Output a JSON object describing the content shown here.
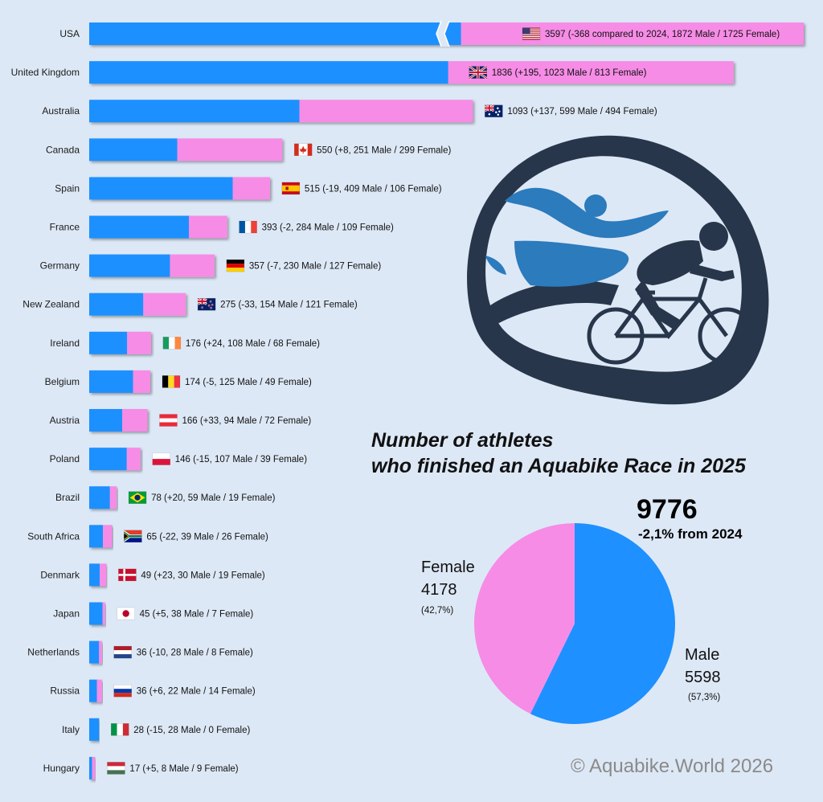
{
  "title_line1": "Number of athletes",
  "title_line2": "who finished an Aquabike Race in 2025",
  "copyright": "© Aquabike.World 2026",
  "colors": {
    "male": "#1e90ff",
    "female": "#f68ce6",
    "background": "#dde8f6",
    "logo_dark": "#27364a",
    "logo_blue": "#2b7bbd"
  },
  "logo": {
    "icon": "swim-bike-logo-icon"
  },
  "total": {
    "value": "9776",
    "change": "-2,1% from 2024"
  },
  "chart_data": [
    {
      "type": "bar",
      "orientation": "horizontal",
      "stacked": true,
      "series": [
        {
          "key": "male",
          "color": "#1e90ff"
        },
        {
          "key": "female",
          "color": "#f68ce6"
        }
      ],
      "broken_axis_category": "USA",
      "rows": [
        {
          "country": "USA",
          "flag": "us-flag-icon",
          "total": 3597,
          "male": 1872,
          "female": 1725,
          "label": "3597 (-368 compared to 2024, 1872 Male / 1725 Female)"
        },
        {
          "country": "United Kingdom",
          "flag": "uk-flag-icon",
          "total": 1836,
          "male": 1023,
          "female": 813,
          "label": "1836 (+195, 1023 Male / 813 Female)"
        },
        {
          "country": "Australia",
          "flag": "australia-flag-icon",
          "total": 1093,
          "male": 599,
          "female": 494,
          "label": "1093 (+137, 599 Male / 494 Female)"
        },
        {
          "country": "Canada",
          "flag": "canada-flag-icon",
          "total": 550,
          "male": 251,
          "female": 299,
          "label": "550 (+8, 251 Male / 299 Female)"
        },
        {
          "country": "Spain",
          "flag": "spain-flag-icon",
          "total": 515,
          "male": 409,
          "female": 106,
          "label": "515 (-19, 409 Male / 106 Female)"
        },
        {
          "country": "France",
          "flag": "france-flag-icon",
          "total": 393,
          "male": 284,
          "female": 109,
          "label": "393 (-2, 284 Male / 109 Female)"
        },
        {
          "country": "Germany",
          "flag": "germany-flag-icon",
          "total": 357,
          "male": 230,
          "female": 127,
          "label": "357 (-7, 230 Male / 127 Female)"
        },
        {
          "country": "New Zealand",
          "flag": "new-zealand-flag-icon",
          "total": 275,
          "male": 154,
          "female": 121,
          "label": "275 (-33, 154 Male / 121 Female)"
        },
        {
          "country": "Ireland",
          "flag": "ireland-flag-icon",
          "total": 176,
          "male": 108,
          "female": 68,
          "label": "176 (+24, 108 Male / 68 Female)"
        },
        {
          "country": "Belgium",
          "flag": "belgium-flag-icon",
          "total": 174,
          "male": 125,
          "female": 49,
          "label": "174 (-5, 125 Male / 49 Female)"
        },
        {
          "country": "Austria",
          "flag": "austria-flag-icon",
          "total": 166,
          "male": 94,
          "female": 72,
          "label": "166 (+33, 94 Male / 72 Female)"
        },
        {
          "country": "Poland",
          "flag": "poland-flag-icon",
          "total": 146,
          "male": 107,
          "female": 39,
          "label": "146 (-15, 107 Male / 39 Female)"
        },
        {
          "country": "Brazil",
          "flag": "brazil-flag-icon",
          "total": 78,
          "male": 59,
          "female": 19,
          "label": "78 (+20, 59 Male / 19 Female)"
        },
        {
          "country": "South Africa",
          "flag": "south-africa-flag-icon",
          "total": 65,
          "male": 39,
          "female": 26,
          "label": "65 (-22, 39 Male / 26 Female)"
        },
        {
          "country": "Denmark",
          "flag": "denmark-flag-icon",
          "total": 49,
          "male": 30,
          "female": 19,
          "label": "49 (+23, 30 Male / 19 Female)"
        },
        {
          "country": "Japan",
          "flag": "japan-flag-icon",
          "total": 45,
          "male": 38,
          "female": 7,
          "label": "45 (+5, 38 Male / 7 Female)"
        },
        {
          "country": "Netherlands",
          "flag": "netherlands-flag-icon",
          "total": 36,
          "male": 28,
          "female": 8,
          "label": "36 (-10, 28 Male / 8 Female)"
        },
        {
          "country": "Russia",
          "flag": "russia-flag-icon",
          "total": 36,
          "male": 22,
          "female": 14,
          "label": "36 (+6, 22 Male / 14 Female)"
        },
        {
          "country": "Italy",
          "flag": "italy-flag-icon",
          "total": 28,
          "male": 28,
          "female": 0,
          "label": "28 (-15, 28 Male / 0 Female)"
        },
        {
          "country": "Hungary",
          "flag": "hungary-flag-icon",
          "total": 17,
          "male": 8,
          "female": 9,
          "label": "17 (+5, 8 Male / 9 Female)"
        }
      ]
    },
    {
      "type": "pie",
      "slices": [
        {
          "name": "Male",
          "value": 5598,
          "value_text": "5598",
          "pct": "(57,3%)",
          "color": "#1e90ff"
        },
        {
          "name": "Female",
          "value": 4178,
          "value_text": "4178",
          "pct": "(42,7%)",
          "color": "#f68ce6"
        }
      ]
    }
  ]
}
